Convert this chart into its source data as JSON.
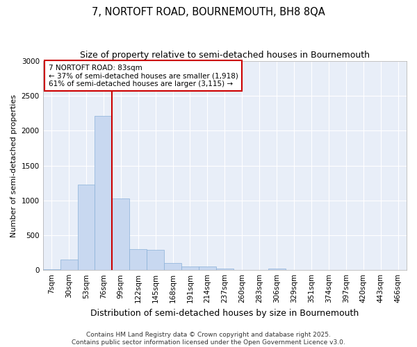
{
  "title": "7, NORTOFT ROAD, BOURNEMOUTH, BH8 8QA",
  "subtitle": "Size of property relative to semi-detached houses in Bournemouth",
  "xlabel": "Distribution of semi-detached houses by size in Bournemouth",
  "ylabel": "Number of semi-detached properties",
  "categories": [
    "7sqm",
    "30sqm",
    "53sqm",
    "76sqm",
    "99sqm",
    "122sqm",
    "145sqm",
    "168sqm",
    "191sqm",
    "214sqm",
    "237sqm",
    "260sqm",
    "283sqm",
    "306sqm",
    "329sqm",
    "351sqm",
    "374sqm",
    "397sqm",
    "420sqm",
    "443sqm",
    "466sqm"
  ],
  "values": [
    10,
    150,
    1230,
    2210,
    1030,
    300,
    295,
    105,
    55,
    50,
    25,
    5,
    0,
    20,
    0,
    0,
    0,
    0,
    0,
    0,
    0
  ],
  "bar_color": "#c8d8f0",
  "bar_edgecolor": "#8ab0d8",
  "vline_color": "#cc0000",
  "annotation_text": "7 NORTOFT ROAD: 83sqm\n← 37% of semi-detached houses are smaller (1,918)\n61% of semi-detached houses are larger (3,115) →",
  "annotation_box_color": "#ffffff",
  "annotation_box_edgecolor": "#cc0000",
  "ylim": [
    0,
    3000
  ],
  "yticks": [
    0,
    500,
    1000,
    1500,
    2000,
    2500,
    3000
  ],
  "fig_background_color": "#ffffff",
  "plot_background_color": "#e8eef8",
  "grid_color": "#ffffff",
  "footer": "Contains HM Land Registry data © Crown copyright and database right 2025.\nContains public sector information licensed under the Open Government Licence v3.0.",
  "title_fontsize": 10.5,
  "subtitle_fontsize": 9,
  "xlabel_fontsize": 9,
  "ylabel_fontsize": 8,
  "tick_fontsize": 7.5,
  "annotation_fontsize": 7.5,
  "footer_fontsize": 6.5
}
